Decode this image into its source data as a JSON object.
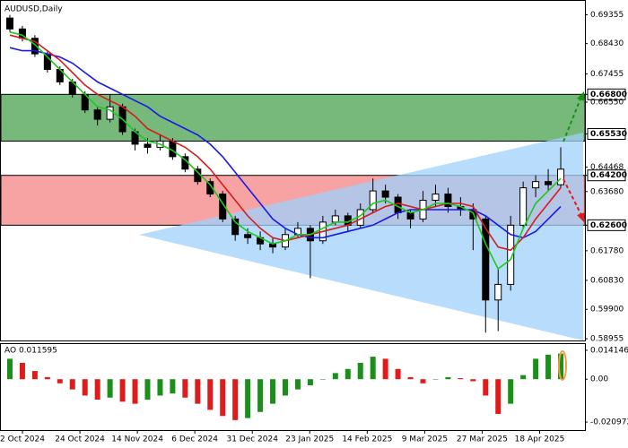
{
  "chart_data": [
    {
      "type": "candlestick",
      "title": "AUDUSD,Daily",
      "x_labels": [
        "2 Oct 2024",
        "24 Oct 2024",
        "14 Nov 2024",
        "6 Dec 2024",
        "31 Dec 2024",
        "23 Jan 2025",
        "14 Feb 2025",
        "9 Mar 2025",
        "27 Mar 2025",
        "18 Apr 2025"
      ],
      "candles": [
        [
          0.6925,
          0.6935,
          0.688,
          0.689
        ],
        [
          0.689,
          0.69,
          0.685,
          0.686
        ],
        [
          0.686,
          0.687,
          0.68,
          0.681
        ],
        [
          0.681,
          0.682,
          0.675,
          0.676
        ],
        [
          0.676,
          0.677,
          0.671,
          0.672
        ],
        [
          0.672,
          0.673,
          0.667,
          0.668
        ],
        [
          0.668,
          0.669,
          0.662,
          0.663
        ],
        [
          0.663,
          0.664,
          0.658,
          0.66
        ],
        [
          0.66,
          0.668,
          0.659,
          0.664
        ],
        [
          0.664,
          0.665,
          0.655,
          0.656
        ],
        [
          0.656,
          0.657,
          0.65,
          0.652
        ],
        [
          0.652,
          0.654,
          0.649,
          0.651
        ],
        [
          0.651,
          0.655,
          0.65,
          0.653
        ],
        [
          0.653,
          0.654,
          0.647,
          0.648
        ],
        [
          0.648,
          0.649,
          0.643,
          0.644
        ],
        [
          0.644,
          0.645,
          0.639,
          0.64
        ],
        [
          0.64,
          0.641,
          0.635,
          0.636
        ],
        [
          0.636,
          0.637,
          0.627,
          0.628
        ],
        [
          0.628,
          0.629,
          0.621,
          0.623
        ],
        [
          0.623,
          0.625,
          0.62,
          0.622
        ],
        [
          0.622,
          0.624,
          0.618,
          0.62
        ],
        [
          0.62,
          0.622,
          0.617,
          0.619
        ],
        [
          0.619,
          0.625,
          0.618,
          0.623
        ],
        [
          0.623,
          0.627,
          0.622,
          0.625
        ],
        [
          0.625,
          0.626,
          0.609,
          0.621
        ],
        [
          0.621,
          0.629,
          0.62,
          0.627
        ],
        [
          0.627,
          0.631,
          0.626,
          0.629
        ],
        [
          0.629,
          0.63,
          0.624,
          0.626
        ],
        [
          0.626,
          0.633,
          0.625,
          0.631
        ],
        [
          0.631,
          0.641,
          0.63,
          0.637
        ],
        [
          0.637,
          0.639,
          0.633,
          0.635
        ],
        [
          0.635,
          0.636,
          0.628,
          0.63
        ],
        [
          0.63,
          0.631,
          0.625,
          0.628
        ],
        [
          0.628,
          0.637,
          0.627,
          0.634
        ],
        [
          0.634,
          0.639,
          0.632,
          0.636
        ],
        [
          0.636,
          0.638,
          0.63,
          0.632
        ],
        [
          0.632,
          0.635,
          0.629,
          0.631
        ],
        [
          0.631,
          0.633,
          0.618,
          0.628
        ],
        [
          0.628,
          0.629,
          0.5915,
          0.602
        ],
        [
          0.602,
          0.612,
          0.592,
          0.607
        ],
        [
          0.607,
          0.629,
          0.605,
          0.626
        ],
        [
          0.626,
          0.64,
          0.625,
          0.638
        ],
        [
          0.638,
          0.642,
          0.635,
          0.64
        ],
        [
          0.64,
          0.644,
          0.637,
          0.639
        ],
        [
          0.639,
          0.651,
          0.638,
          0.644
        ]
      ],
      "series": [
        {
          "color": "#1a1ae6",
          "values": [
            0.683,
            0.682,
            0.682,
            0.681,
            0.68,
            0.678,
            0.675,
            0.672,
            0.67,
            0.668,
            0.666,
            0.664,
            0.661,
            0.659,
            0.657,
            0.655,
            0.652,
            0.648,
            0.643,
            0.638,
            0.633,
            0.628,
            0.625,
            0.623,
            0.622,
            0.622,
            0.623,
            0.624,
            0.625,
            0.626,
            0.628,
            0.63,
            0.631,
            0.631,
            0.631,
            0.631,
            0.631,
            0.631,
            0.629,
            0.626,
            0.623,
            0.622,
            0.624,
            0.628,
            0.632
          ]
        },
        {
          "color": "#d21e1e",
          "values": [
            0.687,
            0.686,
            0.685,
            0.682,
            0.679,
            0.675,
            0.671,
            0.668,
            0.666,
            0.664,
            0.661,
            0.657,
            0.655,
            0.653,
            0.651,
            0.648,
            0.644,
            0.639,
            0.634,
            0.629,
            0.625,
            0.622,
            0.621,
            0.622,
            0.623,
            0.624,
            0.625,
            0.626,
            0.628,
            0.63,
            0.632,
            0.633,
            0.632,
            0.631,
            0.632,
            0.633,
            0.633,
            0.632,
            0.625,
            0.619,
            0.618,
            0.622,
            0.628,
            0.633,
            0.638
          ]
        },
        {
          "color": "#1ec81e",
          "values": [
            0.688,
            0.687,
            0.684,
            0.68,
            0.676,
            0.672,
            0.668,
            0.664,
            0.663,
            0.66,
            0.656,
            0.653,
            0.652,
            0.65,
            0.647,
            0.643,
            0.639,
            0.633,
            0.627,
            0.624,
            0.622,
            0.62,
            0.621,
            0.623,
            0.623,
            0.625,
            0.627,
            0.627,
            0.629,
            0.633,
            0.634,
            0.632,
            0.63,
            0.631,
            0.633,
            0.633,
            0.632,
            0.63,
            0.62,
            0.612,
            0.615,
            0.625,
            0.633,
            0.637,
            0.641
          ]
        }
      ],
      "zones": [
        {
          "from": 0.653,
          "to": 0.668,
          "color": "#76b97a"
        },
        {
          "from": 0.626,
          "to": 0.642,
          "color": "#f7a3a3"
        }
      ],
      "ylim": [
        0.589,
        0.698
      ],
      "yticks": [
        0.69355,
        {
          "value": 0.6843,
          "label": "0.68430"
        },
        0.67455,
        {
          "value": 0.668,
          "label": "0.66800",
          "box": true
        },
        {
          "value": 0.6655,
          "label": "0.66550"
        },
        {
          "value": 0.6553,
          "label": "0.65530",
          "box": true
        },
        0.64468,
        {
          "value": 0.642,
          "label": "0.64200",
          "box": true
        },
        {
          "value": 0.6368,
          "label": "0.63680"
        },
        {
          "value": 0.626,
          "label": "0.62600",
          "box": true
        },
        {
          "value": 0.6178,
          "label": "0.61780"
        },
        {
          "value": 0.6083,
          "label": "0.60830"
        },
        {
          "value": 0.599,
          "label": "0.59900"
        },
        0.58955
      ]
    },
    {
      "type": "histogram",
      "title": "AO 0.011595",
      "up_color": "#1a8f1a",
      "down_color": "#e01b1b",
      "values": [
        0.01,
        0.008,
        0.004,
        0.001,
        -0.002,
        -0.005,
        -0.008,
        -0.01,
        -0.009,
        -0.011,
        -0.012,
        -0.01,
        -0.008,
        -0.007,
        -0.009,
        -0.012,
        -0.015,
        -0.018,
        -0.02,
        -0.019,
        -0.016,
        -0.012,
        -0.008,
        -0.005,
        -0.003,
        0.0,
        0.003,
        0.005,
        0.008,
        0.011,
        0.01,
        0.005,
        0.001,
        -0.002,
        0.0,
        0.001,
        0.0005,
        -0.001,
        -0.008,
        -0.017,
        -0.012,
        0.002,
        0.01,
        0.012,
        0.0125
      ],
      "ylim": [
        -0.02488,
        0.01718
      ],
      "yticks": [
        0.014146,
        {
          "value": 0,
          "label": "0.00"
        },
        -0.020972
      ]
    }
  ]
}
